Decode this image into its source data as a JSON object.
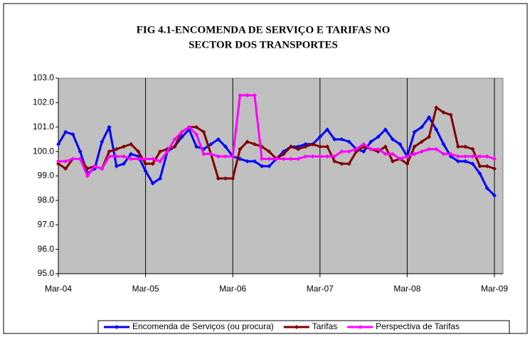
{
  "chart_data": {
    "type": "line",
    "title": [
      "FIG 4.1-ENCOMENDA DE SERVIÇO E  TARIFAS  NO",
      "SECTOR DOS TRANSPORTES"
    ],
    "categories": [
      "Mar-04",
      null,
      null,
      null,
      null,
      null,
      null,
      null,
      null,
      null,
      null,
      null,
      "Mar-05",
      null,
      null,
      null,
      null,
      null,
      null,
      null,
      null,
      null,
      null,
      null,
      "Mar-06",
      null,
      null,
      null,
      null,
      null,
      null,
      null,
      null,
      null,
      null,
      null,
      "Mar-07",
      null,
      null,
      null,
      null,
      null,
      null,
      null,
      null,
      null,
      null,
      null,
      "Mar-08",
      null,
      null,
      null,
      null,
      null,
      null,
      null,
      null,
      null,
      null,
      null,
      "Mar-09"
    ],
    "series": [
      {
        "name": "Encomenda de Serviços (ou procura)",
        "color": "#0000ff",
        "values": [
          100.3,
          100.8,
          100.7,
          100.0,
          99.1,
          99.3,
          100.4,
          101.0,
          99.4,
          99.5,
          99.9,
          99.8,
          99.2,
          98.7,
          98.9,
          100.0,
          100.2,
          100.6,
          100.9,
          100.2,
          100.1,
          100.3,
          100.5,
          100.2,
          99.8,
          99.7,
          99.6,
          99.6,
          99.4,
          99.4,
          99.7,
          100.0,
          100.2,
          100.2,
          100.3,
          100.3,
          100.6,
          100.9,
          100.5,
          100.5,
          100.4,
          100.1,
          100.0,
          100.4,
          100.6,
          100.9,
          100.5,
          100.3,
          99.8,
          100.8,
          101.0,
          101.4,
          100.9,
          100.3,
          99.8,
          99.6,
          99.6,
          99.5,
          99.1,
          98.5,
          98.2
        ]
      },
      {
        "name": "Tarifas",
        "color": "#800000",
        "values": [
          99.5,
          99.3,
          99.7,
          99.7,
          99.3,
          99.4,
          99.3,
          100.0,
          100.1,
          100.2,
          100.3,
          100.0,
          99.5,
          99.5,
          100.0,
          100.1,
          100.2,
          100.8,
          101.0,
          101.0,
          100.8,
          99.9,
          98.9,
          98.9,
          98.9,
          100.1,
          100.4,
          100.3,
          100.2,
          100.0,
          99.7,
          99.9,
          100.2,
          100.1,
          100.2,
          100.3,
          100.2,
          100.2,
          99.6,
          99.5,
          99.5,
          100.0,
          100.2,
          100.1,
          100.0,
          100.2,
          99.6,
          99.7,
          99.5,
          100.2,
          100.4,
          100.6,
          101.8,
          101.6,
          101.5,
          100.2,
          100.2,
          100.1,
          99.4,
          99.4,
          99.3
        ]
      },
      {
        "name": "Perspectiva de Tarifas",
        "color": "#ff00ff",
        "values": [
          99.6,
          99.6,
          99.7,
          99.7,
          99.0,
          99.4,
          99.3,
          99.8,
          99.8,
          99.8,
          99.7,
          99.7,
          99.7,
          99.7,
          99.6,
          100.0,
          100.5,
          100.8,
          101.0,
          100.7,
          99.9,
          99.9,
          99.8,
          99.8,
          99.8,
          102.3,
          102.3,
          102.3,
          99.7,
          99.7,
          99.7,
          99.7,
          99.7,
          99.7,
          99.8,
          99.8,
          99.8,
          99.8,
          99.8,
          100.0,
          100.0,
          100.1,
          100.3,
          100.1,
          100.1,
          99.9,
          99.9,
          99.7,
          99.8,
          99.9,
          100.0,
          100.1,
          100.1,
          99.9,
          99.9,
          99.8,
          99.8,
          99.8,
          99.8,
          99.8,
          99.7
        ]
      }
    ],
    "ylim": [
      95,
      103
    ],
    "yticks": [
      {
        "value": 95,
        "label": "95.0"
      },
      {
        "value": 96,
        "label": "96.0"
      },
      {
        "value": 97,
        "label": "97.0"
      },
      {
        "value": 98,
        "label": "98.0"
      },
      {
        "value": 99,
        "label": "99.0"
      },
      {
        "value": 100,
        "label": "100.0"
      },
      {
        "value": 101,
        "label": "101.0"
      },
      {
        "value": 102,
        "label": "102.0"
      },
      {
        "value": 103,
        "label": "103.0"
      }
    ],
    "legend": "bottom"
  }
}
